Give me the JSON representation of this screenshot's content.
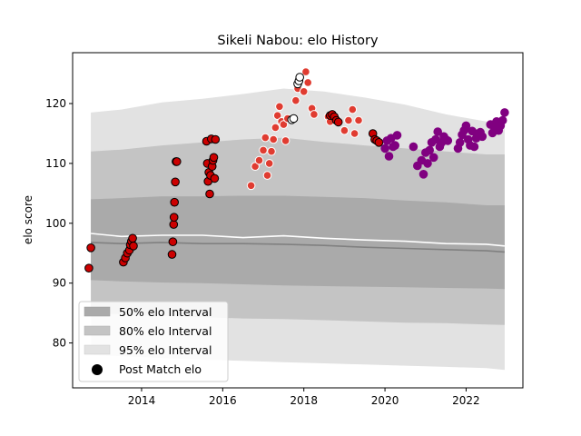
{
  "chart_data": {
    "type": "scatter",
    "title": "Sikeli Nabou: elo History",
    "xlabel": "",
    "ylabel": "elo score",
    "xlim": [
      2012.3,
      2023.4
    ],
    "ylim": [
      72.5,
      128.5
    ],
    "x_ticks": [
      2014,
      2016,
      2018,
      2020,
      2022
    ],
    "x_tick_labels": [
      "2014",
      "2016",
      "2018",
      "2020",
      "2022"
    ],
    "y_ticks": [
      80,
      90,
      100,
      110,
      120
    ],
    "y_tick_labels": [
      "80",
      "90",
      "100",
      "110",
      "120"
    ],
    "grid": false,
    "legend_position": "lower-left",
    "legend": [
      {
        "label": "50% elo Interval",
        "color": "#aaaaaa"
      },
      {
        "label": "80% elo Interval",
        "color": "#c4c4c4"
      },
      {
        "label": "95% elo Interval",
        "color": "#e2e2e2"
      },
      {
        "label": "Post Match elo",
        "color": "#000000"
      }
    ],
    "bands": {
      "x": [
        2012.75,
        2013.5,
        2014.5,
        2015.5,
        2016.5,
        2017.5,
        2018.5,
        2019.5,
        2020.5,
        2021.5,
        2022.5,
        2022.95
      ],
      "i95_upper": [
        118.5,
        119.0,
        120.2,
        120.8,
        121.6,
        122.5,
        122.0,
        121.0,
        119.8,
        118.2,
        117.0,
        116.5
      ],
      "i95_lower": [
        78.0,
        77.8,
        77.5,
        77.2,
        77.0,
        76.8,
        76.6,
        76.4,
        76.2,
        76.0,
        75.8,
        75.5
      ],
      "i80_upper": [
        112.0,
        112.3,
        113.0,
        113.5,
        114.0,
        114.3,
        113.6,
        113.0,
        112.5,
        112.0,
        111.5,
        111.5
      ],
      "i80_lower": [
        85.0,
        84.8,
        84.5,
        84.3,
        84.1,
        84.0,
        83.8,
        83.6,
        83.4,
        83.3,
        83.1,
        83.0
      ],
      "i50_upper": [
        104.0,
        104.2,
        104.5,
        104.5,
        104.6,
        104.6,
        104.4,
        104.2,
        103.8,
        103.5,
        103.0,
        103.0
      ],
      "i50_lower": [
        90.5,
        90.3,
        90.1,
        90.0,
        89.8,
        89.6,
        89.5,
        89.4,
        89.3,
        89.2,
        89.1,
        89.0
      ]
    },
    "median_line": {
      "color": "#808080",
      "x": [
        2012.75,
        2013.5,
        2014.5,
        2015.5,
        2016.5,
        2017.5,
        2018.5,
        2019.5,
        2020.5,
        2021.5,
        2022.5,
        2022.95
      ],
      "y": [
        96.8,
        96.6,
        96.8,
        96.6,
        96.6,
        96.5,
        96.3,
        96.0,
        95.8,
        95.6,
        95.4,
        95.2
      ]
    },
    "mean_line": {
      "color": "#ffffff",
      "x": [
        2012.75,
        2013.5,
        2014.5,
        2015.5,
        2016.5,
        2017.5,
        2018.5,
        2019.5,
        2020.5,
        2021.5,
        2022.5,
        2022.95
      ],
      "y": [
        98.3,
        97.8,
        98.0,
        98.0,
        97.6,
        97.9,
        97.5,
        97.2,
        97.0,
        96.6,
        96.5,
        96.2
      ]
    },
    "series": [
      {
        "color": "#cc0000",
        "edge": "#000000",
        "x": [
          2012.7,
          2012.75,
          2013.55,
          2013.6,
          2013.65,
          2013.7,
          2013.72,
          2013.75,
          2013.78,
          2013.8,
          2014.75,
          2014.77,
          2014.79,
          2014.8,
          2014.81,
          2014.83,
          2014.85,
          2014.87,
          2015.6,
          2015.62,
          2015.64,
          2015.66,
          2015.68,
          2015.7,
          2015.72,
          2015.74,
          2015.76,
          2015.78,
          2015.8,
          2015.82
        ],
        "y": [
          92.5,
          95.9,
          93.5,
          94.2,
          95.0,
          95.5,
          96.4,
          97.0,
          97.5,
          96.2,
          94.8,
          96.9,
          99.8,
          101.0,
          103.5,
          106.9,
          110.3,
          110.3,
          113.7,
          110.0,
          107.0,
          108.5,
          104.9,
          108.0,
          114.1,
          109.5,
          110.5,
          111.0,
          107.5,
          114.0
        ]
      },
      {
        "color": "#e03c31",
        "edge": "#ffffff",
        "x": [
          2016.7,
          2016.8,
          2016.9,
          2017.0,
          2017.05,
          2017.1,
          2017.15,
          2017.2,
          2017.25,
          2017.3,
          2017.35,
          2017.4,
          2017.45,
          2017.5,
          2017.55,
          2017.6,
          2017.8,
          2017.85,
          2017.9,
          2018.0,
          2018.05,
          2018.1,
          2018.2,
          2018.25,
          2018.6,
          2018.65,
          2018.7,
          2018.8,
          2018.85,
          2019.0,
          2019.1,
          2019.2,
          2019.25,
          2019.35
        ],
        "y": [
          106.3,
          109.5,
          110.5,
          112.2,
          114.3,
          108.0,
          110.0,
          112.0,
          114.0,
          116.0,
          118.0,
          119.5,
          117.0,
          116.5,
          113.8,
          117.5,
          120.5,
          122.5,
          124.0,
          122.0,
          125.3,
          123.5,
          119.2,
          118.2,
          117.8,
          117.0,
          118.3,
          117.5,
          116.9,
          115.5,
          117.2,
          119.0,
          115.0,
          117.2
        ]
      },
      {
        "color": "#cc0000",
        "edge": "#000000",
        "x": [
          2018.65,
          2018.7,
          2018.75,
          2018.8,
          2018.85,
          2019.7,
          2019.75,
          2019.8,
          2019.85
        ],
        "y": [
          118.0,
          118.2,
          117.8,
          117.2,
          116.9,
          115.0,
          114.0,
          113.8,
          113.5
        ]
      },
      {
        "color": "#ffffff",
        "edge": "#000000",
        "x": [
          2017.7,
          2017.75,
          2017.85,
          2017.88,
          2017.9
        ],
        "y": [
          117.3,
          117.5,
          123.3,
          123.8,
          124.4
        ]
      },
      {
        "color": "#800080",
        "edge": "#800080",
        "x": [
          2020.0,
          2020.05,
          2020.1,
          2020.15,
          2020.2,
          2020.25,
          2020.3,
          2020.7,
          2020.8,
          2020.9,
          2020.95,
          2021.0,
          2021.05,
          2021.1,
          2021.15,
          2021.2,
          2021.25,
          2021.3,
          2021.35,
          2021.4,
          2021.45,
          2021.5,
          2021.55,
          2021.8,
          2021.85,
          2021.9,
          2021.95,
          2022.0,
          2022.05,
          2022.1,
          2022.15,
          2022.2,
          2022.25,
          2022.3,
          2022.35,
          2022.4,
          2022.6,
          2022.65,
          2022.7,
          2022.75,
          2022.8,
          2022.85,
          2022.9,
          2022.95
        ],
        "y": [
          112.5,
          113.8,
          111.2,
          114.2,
          112.8,
          113.0,
          114.7,
          112.8,
          109.6,
          110.5,
          108.2,
          111.8,
          110.0,
          112.2,
          113.5,
          111.0,
          114.0,
          115.3,
          112.8,
          113.5,
          114.5,
          114.0,
          113.8,
          112.5,
          113.5,
          114.8,
          115.5,
          116.3,
          114.0,
          113.0,
          115.4,
          112.8,
          114.2,
          115.0,
          115.2,
          114.5,
          116.5,
          115.1,
          116.0,
          117.0,
          115.5,
          116.3,
          117.2,
          118.5
        ]
      }
    ]
  }
}
